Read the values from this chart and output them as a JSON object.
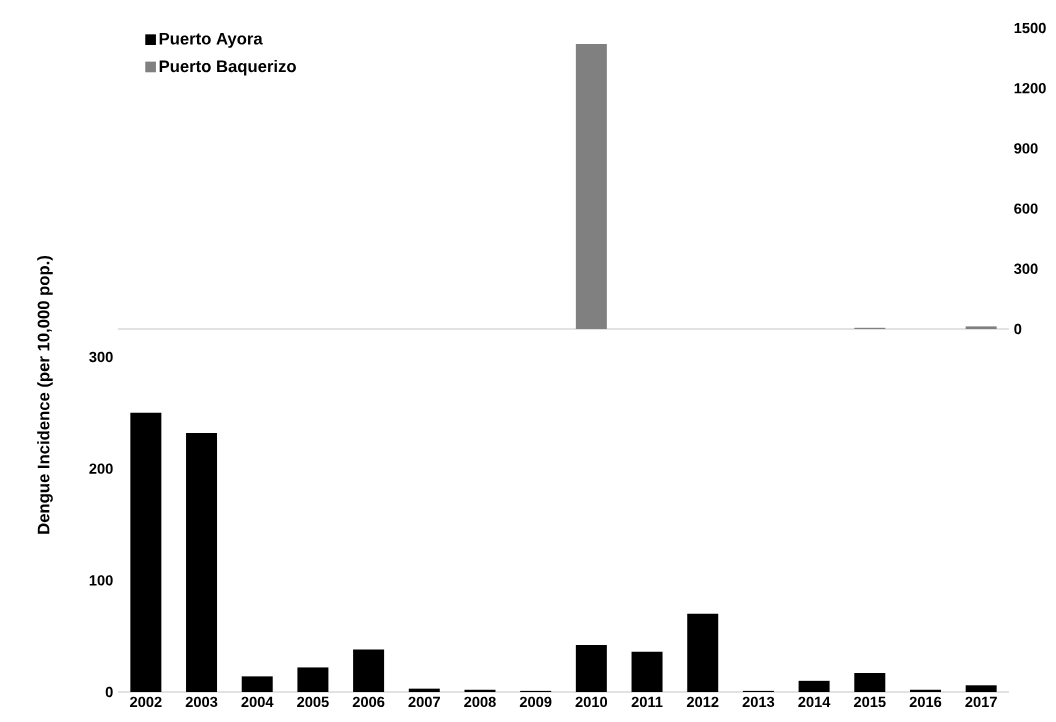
{
  "chart_data": [
    {
      "type": "bar",
      "categories": [
        "2002",
        "2003",
        "2004",
        "2005",
        "2006",
        "2007",
        "2008",
        "2009",
        "2010",
        "2011",
        "2012",
        "2013",
        "2014",
        "2015",
        "2016",
        "2017"
      ],
      "series": [
        {
          "name": "Puerto Baquerizo",
          "color": "#808080",
          "values": [
            0,
            0,
            0,
            0,
            0,
            0,
            0,
            0,
            1420,
            0,
            0,
            0,
            0,
            6,
            0,
            13
          ]
        }
      ],
      "ylim": [
        0,
        1500
      ],
      "yticks": [
        0,
        300,
        600,
        900,
        1200,
        1500
      ],
      "tick_labels": "y",
      "legend": "top left"
    },
    {
      "type": "bar",
      "ylabel": "Dengue Incidence (per 10,000 pop.)",
      "categories": [
        "2002",
        "2003",
        "2004",
        "2005",
        "2006",
        "2007",
        "2008",
        "2009",
        "2010",
        "2011",
        "2012",
        "2013",
        "2014",
        "2015",
        "2016",
        "2017"
      ],
      "series": [
        {
          "name": "Puerto Ayora",
          "color": "#000000",
          "values": [
            250,
            232,
            14,
            22,
            38,
            3,
            2,
            1,
            42,
            36,
            70,
            1,
            10,
            17,
            2,
            6
          ]
        }
      ],
      "ylim": [
        0,
        300
      ],
      "yticks": [
        0,
        100,
        200,
        300
      ],
      "legend": "top left"
    }
  ]
}
